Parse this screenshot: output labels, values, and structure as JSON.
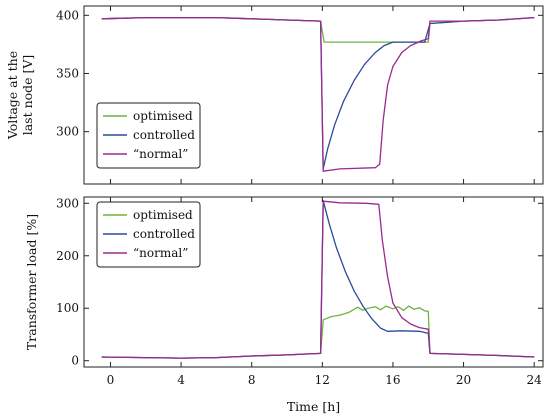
{
  "chart_data": [
    {
      "type": "line",
      "xlabel": "",
      "ylabel": [
        "Voltage at the",
        "last node [V]"
      ],
      "xlim": [
        -1.5,
        24.5
      ],
      "ylim": [
        255,
        408
      ],
      "xticks": [
        "0",
        "4",
        "8",
        "12",
        "16",
        "20",
        "24"
      ],
      "yticks": [
        "300",
        "350",
        "400"
      ],
      "grid": false,
      "legend_position": "bottom-left",
      "series": [
        {
          "name": "optimised",
          "color": "#6db33f",
          "points": [
            [
              -0.5,
              397
            ],
            [
              2,
              398
            ],
            [
              4,
              398
            ],
            [
              6,
              398
            ],
            [
              8,
              397
            ],
            [
              10,
              396
            ],
            [
              11.9,
              395
            ],
            [
              12.1,
              377
            ],
            [
              14,
              377
            ],
            [
              16,
              377
            ],
            [
              17.5,
              377
            ],
            [
              18,
              377
            ],
            [
              18.1,
              393
            ],
            [
              20,
              395
            ],
            [
              22,
              396
            ],
            [
              24,
              398
            ]
          ]
        },
        {
          "name": "controlled",
          "color": "#2c4a9a",
          "points": [
            [
              -0.5,
              397
            ],
            [
              2,
              398
            ],
            [
              4,
              398
            ],
            [
              6,
              398
            ],
            [
              8,
              397
            ],
            [
              10,
              396
            ],
            [
              11.9,
              395
            ],
            [
              12.05,
              268
            ],
            [
              12.3,
              285
            ],
            [
              12.7,
              306
            ],
            [
              13.2,
              326
            ],
            [
              13.8,
              344
            ],
            [
              14.4,
              358
            ],
            [
              15,
              368
            ],
            [
              15.5,
              374
            ],
            [
              16,
              377
            ],
            [
              17,
              377
            ],
            [
              17.8,
              377
            ],
            [
              18.1,
              393
            ],
            [
              20,
              395
            ],
            [
              22,
              396
            ],
            [
              24,
              398
            ]
          ]
        },
        {
          "name": "“normal”",
          "color": "#9b2a8f",
          "points": [
            [
              -0.5,
              397
            ],
            [
              2,
              398
            ],
            [
              4,
              398
            ],
            [
              6,
              398
            ],
            [
              8,
              397
            ],
            [
              10,
              396
            ],
            [
              11.9,
              395
            ],
            [
              12.05,
              266
            ],
            [
              13,
              268
            ],
            [
              15,
              269
            ],
            [
              15.25,
              272
            ],
            [
              15.45,
              310
            ],
            [
              15.7,
              340
            ],
            [
              16,
              356
            ],
            [
              16.5,
              368
            ],
            [
              17,
              374
            ],
            [
              17.6,
              378
            ],
            [
              18,
              380
            ],
            [
              18.1,
              395
            ],
            [
              20,
              395
            ],
            [
              22,
              396
            ],
            [
              24,
              398
            ]
          ]
        }
      ]
    },
    {
      "type": "line",
      "xlabel": "Time [h]",
      "ylabel": "Transformer load [%]",
      "xlim": [
        -1.5,
        24.5
      ],
      "ylim": [
        -12,
        312
      ],
      "xticks": [
        "0",
        "4",
        "8",
        "12",
        "16",
        "20",
        "24"
      ],
      "yticks": [
        "0",
        "100",
        "200",
        "300"
      ],
      "grid": false,
      "legend_position": "top-left",
      "series": [
        {
          "name": "optimised",
          "color": "#6db33f",
          "points": [
            [
              -0.5,
              7
            ],
            [
              2,
              6
            ],
            [
              4,
              5
            ],
            [
              6,
              6
            ],
            [
              8,
              9
            ],
            [
              10,
              11
            ],
            [
              11.9,
              14
            ],
            [
              12.05,
              78
            ],
            [
              12.5,
              84
            ],
            [
              13,
              87
            ],
            [
              13.5,
              92
            ],
            [
              14,
              102
            ],
            [
              14.3,
              96
            ],
            [
              14.6,
              100
            ],
            [
              15,
              103
            ],
            [
              15.3,
              97
            ],
            [
              15.6,
              104
            ],
            [
              16,
              99
            ],
            [
              16.3,
              103
            ],
            [
              16.6,
              96
            ],
            [
              16.9,
              104
            ],
            [
              17.2,
              98
            ],
            [
              17.5,
              101
            ],
            [
              17.8,
              95
            ],
            [
              18,
              94
            ],
            [
              18.1,
              14
            ],
            [
              20,
              12
            ],
            [
              22,
              10
            ],
            [
              24,
              7
            ]
          ]
        },
        {
          "name": "controlled",
          "color": "#2c4a9a",
          "points": [
            [
              -0.5,
              7
            ],
            [
              2,
              6
            ],
            [
              4,
              5
            ],
            [
              6,
              6
            ],
            [
              8,
              9
            ],
            [
              10,
              11
            ],
            [
              11.9,
              14
            ],
            [
              12.05,
              305
            ],
            [
              12.4,
              260
            ],
            [
              12.8,
              215
            ],
            [
              13.3,
              170
            ],
            [
              13.8,
              133
            ],
            [
              14.3,
              104
            ],
            [
              14.8,
              80
            ],
            [
              15.3,
              62
            ],
            [
              15.7,
              56
            ],
            [
              16.5,
              57
            ],
            [
              17.5,
              56
            ],
            [
              18,
              52
            ],
            [
              18.1,
              14
            ],
            [
              20,
              12
            ],
            [
              22,
              10
            ],
            [
              24,
              7
            ]
          ]
        },
        {
          "name": "“normal”",
          "color": "#9b2a8f",
          "points": [
            [
              -0.5,
              7
            ],
            [
              2,
              6
            ],
            [
              4,
              5
            ],
            [
              6,
              6
            ],
            [
              8,
              9
            ],
            [
              10,
              11
            ],
            [
              11.9,
              14
            ],
            [
              12.05,
              304
            ],
            [
              13,
              301
            ],
            [
              14.5,
              300
            ],
            [
              15.2,
              298
            ],
            [
              15.4,
              230
            ],
            [
              15.7,
              160
            ],
            [
              16,
              110
            ],
            [
              16.5,
              82
            ],
            [
              17,
              70
            ],
            [
              17.5,
              63
            ],
            [
              18,
              60
            ],
            [
              18.1,
              14
            ],
            [
              20,
              12
            ],
            [
              22,
              10
            ],
            [
              24,
              7
            ]
          ]
        }
      ]
    }
  ]
}
